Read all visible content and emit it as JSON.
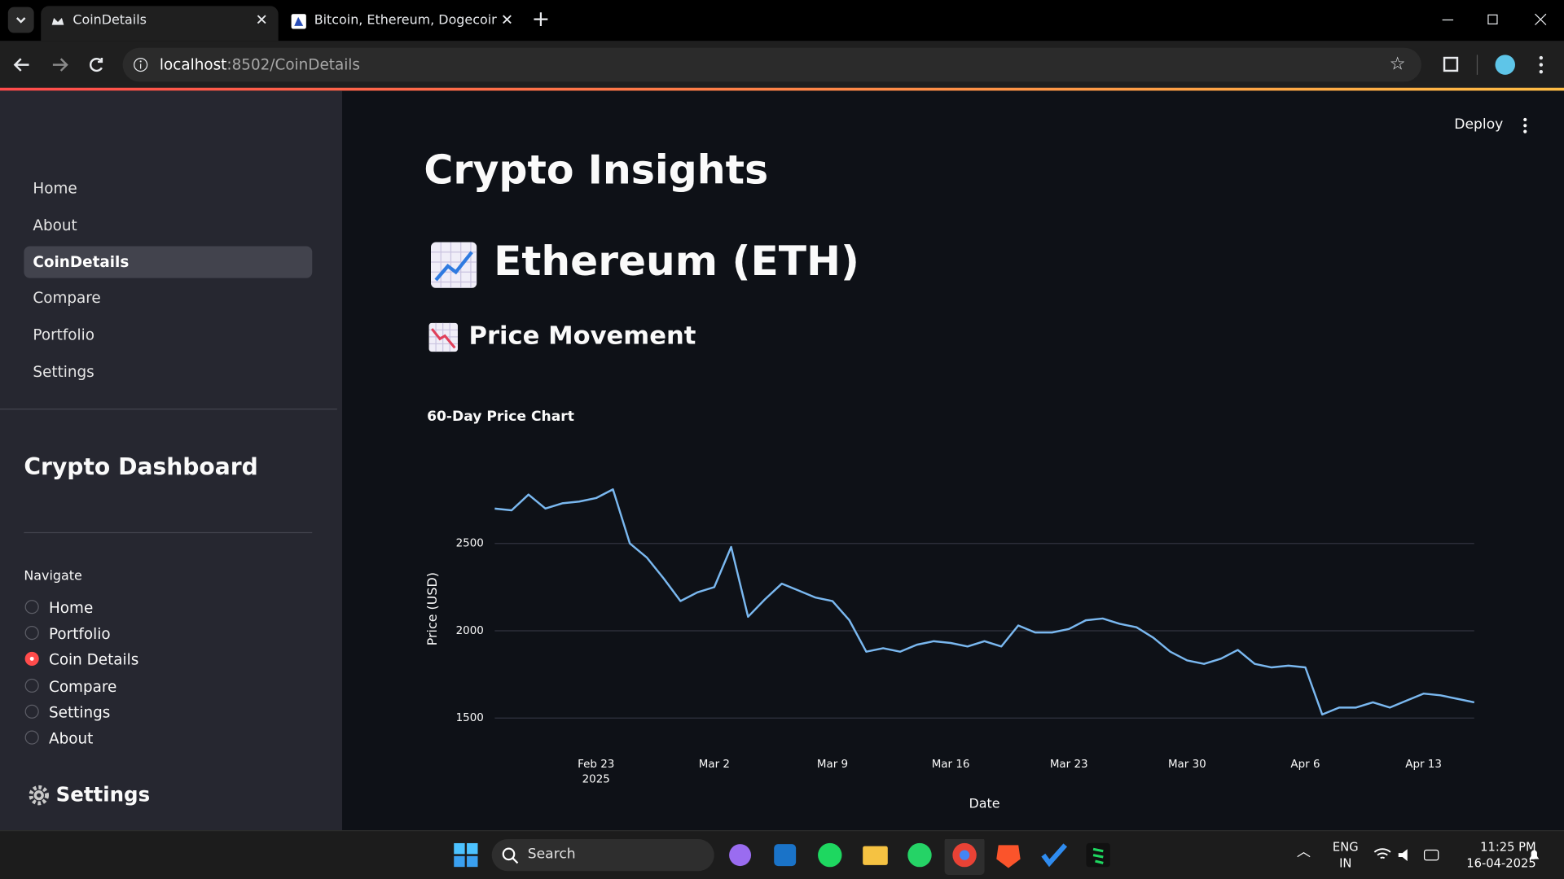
{
  "browser": {
    "tabs": [
      "CoinDetails",
      "Bitcoin, Ethereum, Dogecoin M"
    ],
    "url_host": "localhost",
    "url_path": ":8502/CoinDetails"
  },
  "app": {
    "deploy": "Deploy",
    "nav_links": [
      "Home",
      "About",
      "CoinDetails",
      "Compare",
      "Portfolio",
      "Settings"
    ],
    "active_nav": 2,
    "sidebar_title": "Crypto Dashboard",
    "radio_label": "Navigate",
    "radio_options": [
      "Home",
      "Portfolio",
      "Coin Details",
      "Compare",
      "Settings",
      "About"
    ],
    "radio_selected": 2,
    "settings_heading": "Settings",
    "title": "Crypto Insights",
    "coin_heading": "Ethereum (ETH)",
    "section_heading": "Price Movement"
  },
  "chart_data": {
    "type": "line",
    "title": "60-Day Price Chart",
    "x_label": "Date",
    "y_label": "Price (USD)",
    "color": "#7ab8f0",
    "grid": true,
    "x": [
      "2025-02-17",
      "2025-02-18",
      "2025-02-19",
      "2025-02-20",
      "2025-02-21",
      "2025-02-22",
      "2025-02-23",
      "2025-02-24",
      "2025-02-25",
      "2025-02-26",
      "2025-02-27",
      "2025-02-28",
      "2025-03-01",
      "2025-03-02",
      "2025-03-03",
      "2025-03-04",
      "2025-03-05",
      "2025-03-06",
      "2025-03-07",
      "2025-03-08",
      "2025-03-09",
      "2025-03-10",
      "2025-03-11",
      "2025-03-12",
      "2025-03-13",
      "2025-03-14",
      "2025-03-15",
      "2025-03-16",
      "2025-03-17",
      "2025-03-18",
      "2025-03-19",
      "2025-03-20",
      "2025-03-21",
      "2025-03-22",
      "2025-03-23",
      "2025-03-24",
      "2025-03-25",
      "2025-03-26",
      "2025-03-27",
      "2025-03-28",
      "2025-03-29",
      "2025-03-30",
      "2025-03-31",
      "2025-04-01",
      "2025-04-02",
      "2025-04-03",
      "2025-04-04",
      "2025-04-05",
      "2025-04-06",
      "2025-04-07",
      "2025-04-08",
      "2025-04-09",
      "2025-04-10",
      "2025-04-11",
      "2025-04-12",
      "2025-04-13",
      "2025-04-14",
      "2025-04-15",
      "2025-04-16"
    ],
    "values": [
      2700,
      2690,
      2780,
      2700,
      2730,
      2740,
      2760,
      2810,
      2500,
      2420,
      2300,
      2170,
      2220,
      2250,
      2480,
      2080,
      2180,
      2270,
      2230,
      2190,
      2170,
      2060,
      1880,
      1900,
      1880,
      1920,
      1940,
      1930,
      1910,
      1940,
      1910,
      2030,
      1990,
      1990,
      2010,
      2060,
      2070,
      2040,
      2020,
      1960,
      1880,
      1830,
      1810,
      1840,
      1890,
      1810,
      1790,
      1800,
      1790,
      1520,
      1560,
      1560,
      1590,
      1560,
      1600,
      1640,
      1630,
      1610,
      1590
    ],
    "xlim": [
      "2025-02-17",
      "2025-04-16"
    ],
    "xticks": [
      {
        "value": "2025-02-23",
        "label": "Feb 23",
        "sublabel": "2025"
      },
      {
        "value": "2025-03-02",
        "label": "Mar 2"
      },
      {
        "value": "2025-03-09",
        "label": "Mar 9"
      },
      {
        "value": "2025-03-16",
        "label": "Mar 16"
      },
      {
        "value": "2025-03-23",
        "label": "Mar 23"
      },
      {
        "value": "2025-03-30",
        "label": "Mar 30"
      },
      {
        "value": "2025-04-06",
        "label": "Apr 6"
      },
      {
        "value": "2025-04-13",
        "label": "Apr 13"
      }
    ],
    "ylim": [
      1360,
      2930
    ],
    "yticks": [
      1500,
      2000,
      2500
    ]
  },
  "taskbar": {
    "search": "Search",
    "lang": "ENG",
    "region": "IN",
    "time": "11:25 PM",
    "date": "16-04-2025"
  }
}
